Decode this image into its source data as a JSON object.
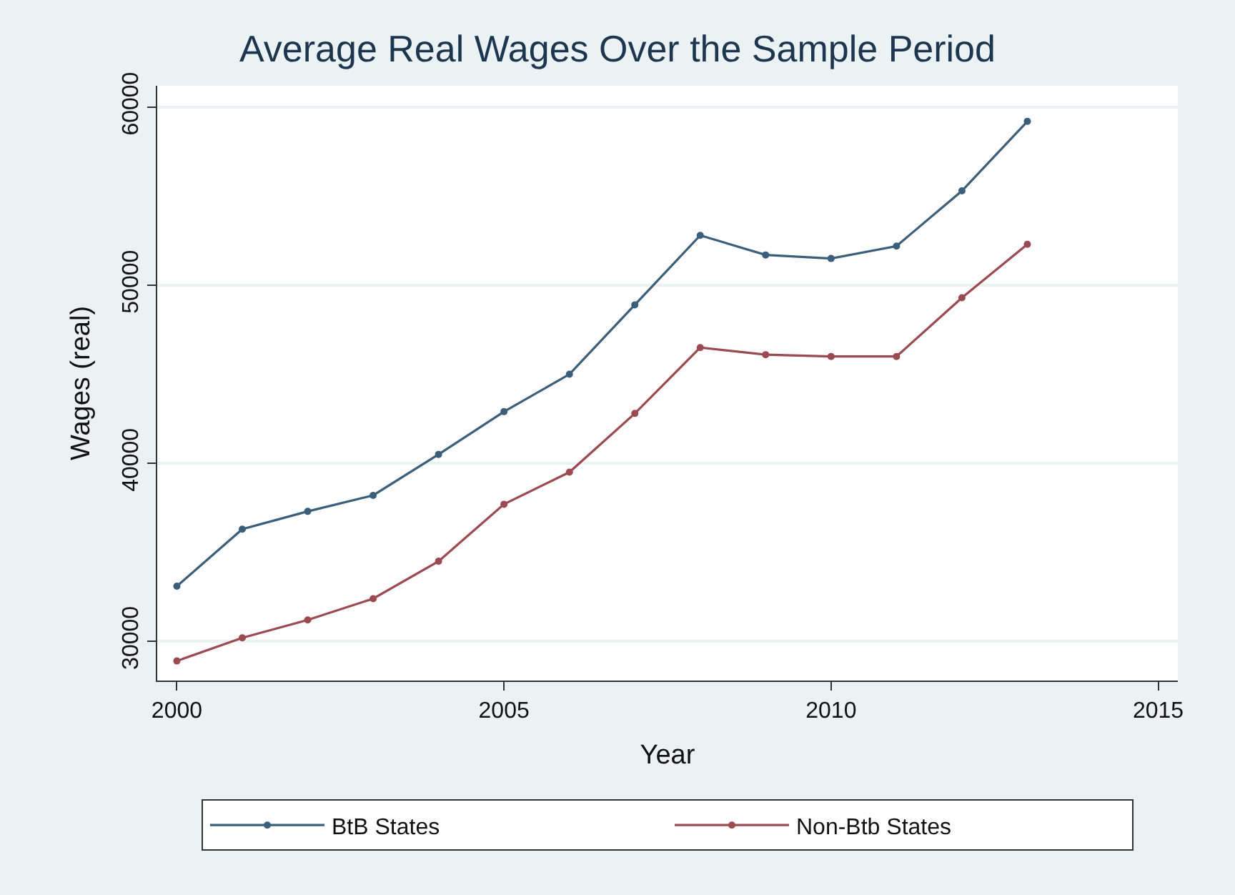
{
  "chart_data": {
    "type": "line",
    "title": "Average Real Wages Over the Sample Period",
    "xlabel": "Year",
    "ylabel": "Wages (real)",
    "x": [
      2000,
      2001,
      2002,
      2003,
      2004,
      2005,
      2006,
      2007,
      2008,
      2009,
      2010,
      2011,
      2012,
      2013
    ],
    "series": [
      {
        "name": "BtB States",
        "color": "#3b5f7a",
        "values": [
          33100,
          36300,
          37300,
          38200,
          40500,
          42900,
          45000,
          48900,
          52800,
          51700,
          51500,
          52200,
          55300,
          59200
        ]
      },
      {
        "name": "Non-Btb States",
        "color": "#9c4a52",
        "values": [
          28900,
          30200,
          31200,
          32400,
          34500,
          37700,
          39500,
          42800,
          46500,
          46100,
          46000,
          46000,
          49300,
          52300
        ]
      }
    ],
    "xlim": [
      1999.7,
      2015.3
    ],
    "xticks": [
      2000,
      2005,
      2010,
      2015
    ],
    "ylim": [
      27800,
      61200
    ],
    "yticks": [
      30000,
      40000,
      50000,
      60000
    ],
    "grid": "y",
    "legend": "bottom",
    "marker": "circle",
    "line_style": "solid"
  }
}
